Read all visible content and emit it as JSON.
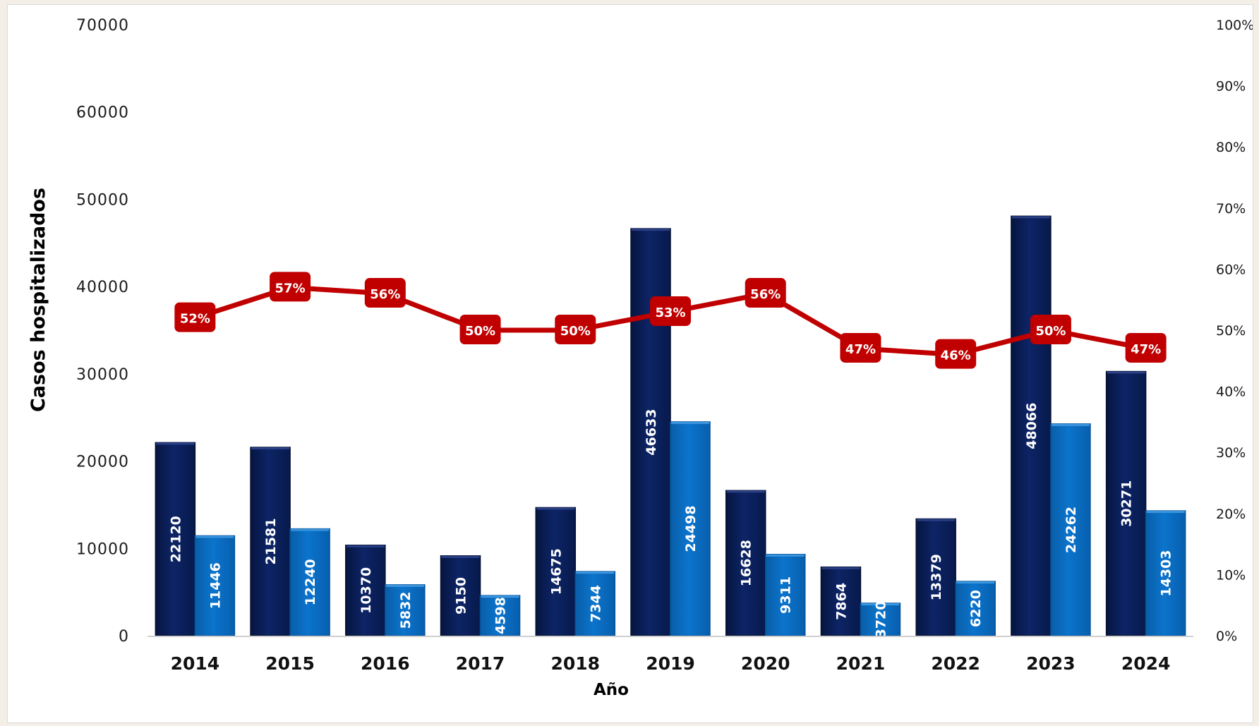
{
  "chart_data": {
    "type": "bar",
    "xlabel": "Año",
    "ylabel": "Casos hospitalizados",
    "ylim": [
      0,
      70000
    ],
    "y2lim": [
      0,
      100
    ],
    "yticks": [
      "0",
      "10000",
      "20000",
      "30000",
      "40000",
      "50000",
      "60000",
      "70000"
    ],
    "y2ticks": [
      "0%",
      "10%",
      "20%",
      "30%",
      "40%",
      "50%",
      "60%",
      "70%",
      "80%",
      "90%",
      "100%"
    ],
    "categories": [
      "2014",
      "2015",
      "2016",
      "2017",
      "2018",
      "2019",
      "2020",
      "2021",
      "2022",
      "2023",
      "2024"
    ],
    "series": [
      {
        "type": "bar",
        "axis": "left",
        "color": "#0b2060",
        "values": [
          22120,
          21581,
          10370,
          9150,
          14675,
          46633,
          16628,
          7864,
          13379,
          48066,
          30271
        ],
        "labels": [
          "22120",
          "21581",
          "10370",
          "9150",
          "14675",
          "46633",
          "16628",
          "7864",
          "13379",
          "48066",
          "30271"
        ]
      },
      {
        "type": "bar",
        "axis": "left",
        "color": "#0a6fc2",
        "values": [
          11446,
          12240,
          5832,
          4598,
          7344,
          24498,
          9311,
          3720,
          6220,
          24262,
          14303
        ],
        "labels": [
          "11446",
          "12240",
          "5832",
          "4598",
          "7344",
          "24498",
          "9311",
          "3720",
          "6220",
          "24262",
          "14303"
        ]
      },
      {
        "type": "line",
        "axis": "right",
        "color": "#c00000",
        "values": [
          52,
          57,
          56,
          50,
          50,
          53,
          56,
          47,
          46,
          50,
          47
        ],
        "labels": [
          "52%",
          "57%",
          "56%",
          "50%",
          "50%",
          "53%",
          "56%",
          "47%",
          "46%",
          "50%",
          "47%"
        ]
      }
    ],
    "grid": false,
    "legend": "none"
  }
}
